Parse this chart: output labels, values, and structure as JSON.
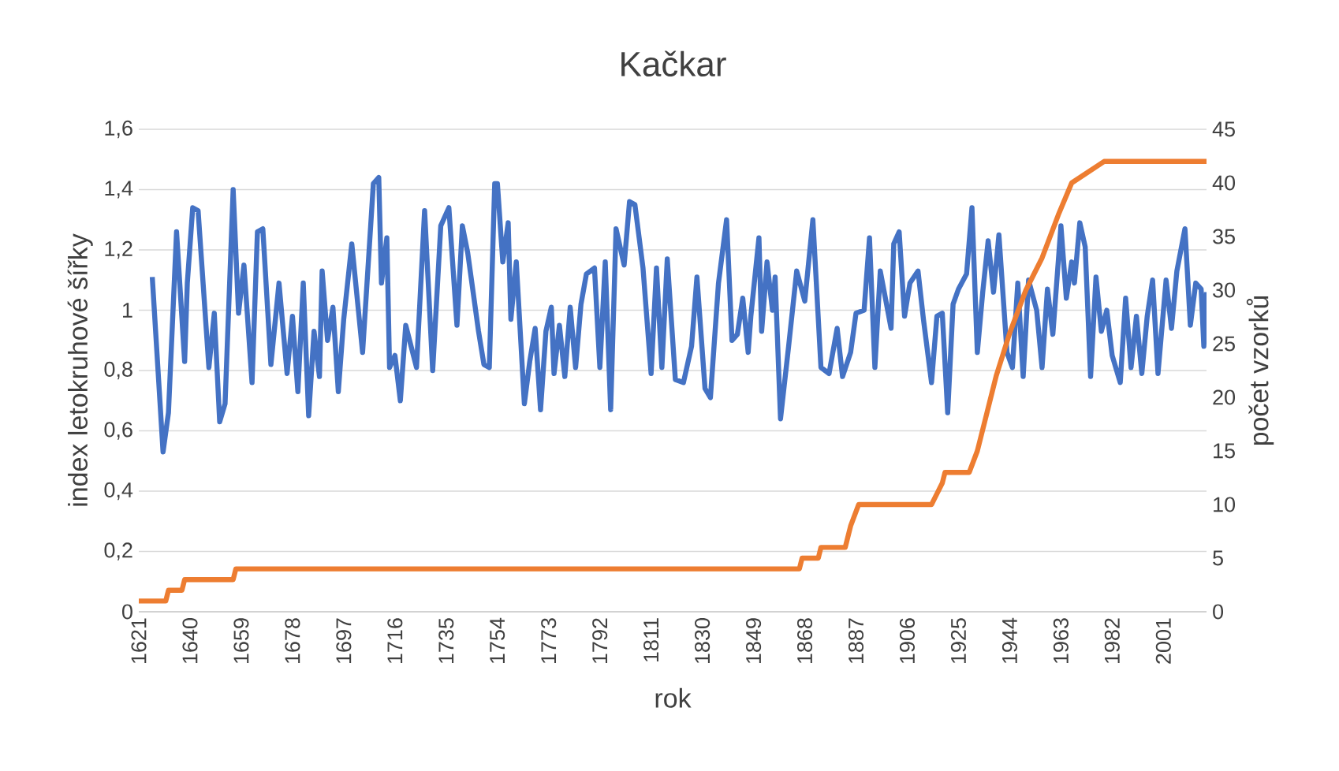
{
  "chart_data": {
    "type": "line",
    "title": "Kačkar",
    "xlabel": "rok",
    "ylabel": "index letokruhové šířky",
    "y2label": "počet vzorků",
    "xlim": [
      1621,
      2017
    ],
    "xticks": [
      1621,
      1640,
      1659,
      1678,
      1697,
      1716,
      1735,
      1754,
      1773,
      1792,
      1811,
      1830,
      1849,
      1868,
      1887,
      1906,
      1925,
      1944,
      1963,
      1982,
      2001
    ],
    "ylim": [
      0,
      1.6
    ],
    "yticks": [
      0,
      {
        "value": 0.2,
        "label": "0,2"
      },
      {
        "value": 0.4,
        "label": "0,4"
      },
      {
        "value": 0.6,
        "label": "0,6"
      },
      {
        "value": 0.8,
        "label": "0,8"
      },
      1,
      {
        "value": 1.2,
        "label": "1,2"
      },
      {
        "value": 1.4,
        "label": "1,4"
      },
      {
        "value": 1.6,
        "label": "1,6"
      }
    ],
    "y2lim": [
      0,
      45
    ],
    "y2ticks": [
      0,
      5,
      10,
      15,
      20,
      25,
      30,
      35,
      40,
      45
    ],
    "grid": "y",
    "series": [
      {
        "color": "#4472c4",
        "x": [
          1626,
          1630,
          1632,
          1635,
          1638,
          1639,
          1641,
          1643,
          1647,
          1649,
          1651,
          1653,
          1656,
          1658,
          1660,
          1663,
          1665,
          1667,
          1670,
          1673,
          1676,
          1678,
          1680,
          1682,
          1684,
          1686,
          1688,
          1689,
          1691,
          1693,
          1695,
          1697,
          1700,
          1704,
          1708,
          1710,
          1711,
          1713,
          1714,
          1716,
          1718,
          1720,
          1724,
          1727,
          1730,
          1733,
          1736,
          1739,
          1741,
          1743,
          1747,
          1749,
          1751,
          1753,
          1754,
          1756,
          1758,
          1759,
          1761,
          1764,
          1766,
          1768,
          1770,
          1772,
          1774,
          1775,
          1777,
          1779,
          1781,
          1783,
          1785,
          1787,
          1790,
          1792,
          1794,
          1796,
          1798,
          1801,
          1803,
          1805,
          1808,
          1811,
          1813,
          1815,
          1817,
          1820,
          1823,
          1826,
          1828,
          1831,
          1833,
          1836,
          1839,
          1841,
          1843,
          1845,
          1847,
          1848,
          1851,
          1852,
          1854,
          1856,
          1857,
          1859,
          1862,
          1865,
          1868,
          1871,
          1874,
          1877,
          1880,
          1882,
          1885,
          1887,
          1890,
          1892,
          1894,
          1896,
          1900,
          1901,
          1903,
          1905,
          1907,
          1910,
          1912,
          1915,
          1917,
          1919,
          1921,
          1923,
          1925,
          1928,
          1930,
          1932,
          1934,
          1936,
          1938,
          1940,
          1943,
          1945,
          1947,
          1949,
          1951,
          1954,
          1956,
          1958,
          1960,
          1963,
          1965,
          1967,
          1968,
          1970,
          1972,
          1974,
          1976,
          1978,
          1980,
          1982,
          1985,
          1987,
          1989,
          1991,
          1993,
          1995,
          1997,
          1999,
          2002,
          2004,
          2006,
          2009,
          2011,
          2013,
          2015,
          2016,
          2017
        ],
        "values": [
          1.11,
          0.53,
          0.66,
          1.26,
          0.83,
          1.09,
          1.34,
          1.33,
          0.81,
          0.99,
          0.63,
          0.69,
          1.4,
          0.99,
          1.15,
          0.76,
          1.26,
          1.27,
          0.82,
          1.09,
          0.79,
          0.98,
          0.73,
          1.09,
          0.65,
          0.93,
          0.78,
          1.13,
          0.9,
          1.01,
          0.73,
          0.97,
          1.22,
          0.86,
          1.42,
          1.44,
          1.09,
          1.24,
          0.81,
          0.85,
          0.7,
          0.95,
          0.81,
          1.33,
          0.8,
          1.28,
          1.34,
          0.95,
          1.28,
          1.19,
          0.93,
          0.82,
          0.81,
          1.42,
          1.42,
          1.16,
          1.29,
          0.97,
          1.16,
          0.69,
          0.83,
          0.94,
          0.67,
          0.93,
          1.01,
          0.79,
          0.95,
          0.78,
          1.01,
          0.81,
          1.02,
          1.12,
          1.14,
          0.81,
          1.16,
          0.67,
          1.27,
          1.15,
          1.36,
          1.35,
          1.14,
          0.79,
          1.14,
          0.81,
          1.17,
          0.77,
          0.76,
          0.88,
          1.11,
          0.74,
          0.71,
          1.09,
          1.3,
          0.9,
          0.92,
          1.04,
          0.86,
          0.98,
          1.24,
          0.93,
          1.16,
          1.0,
          1.11,
          0.64,
          0.88,
          1.13,
          1.03,
          1.3,
          0.81,
          0.79,
          0.94,
          0.78,
          0.86,
          0.99,
          1.0,
          1.24,
          0.81,
          1.13,
          0.94,
          1.22,
          1.26,
          0.98,
          1.09,
          1.13,
          0.97,
          0.76,
          0.98,
          0.99,
          0.66,
          1.02,
          1.07,
          1.12,
          1.34,
          0.86,
          1.06,
          1.23,
          1.06,
          1.25,
          0.86,
          0.81,
          1.09,
          0.78,
          1.1,
          1.0,
          0.81,
          1.07,
          0.92,
          1.28,
          1.04,
          1.16,
          1.09,
          1.29,
          1.21,
          0.78,
          1.11,
          0.93,
          1.0,
          0.85,
          0.76,
          1.04,
          0.81,
          0.98,
          0.79,
          0.98,
          1.1,
          0.79,
          1.1,
          0.94,
          1.13,
          1.27,
          0.95,
          1.09,
          1.07,
          0.88,
          1.06
        ]
      },
      {
        "axis": "y2",
        "color": "#ed7d31",
        "x": [
          1621,
          1631,
          1632,
          1637,
          1638,
          1656,
          1657,
          1866,
          1867,
          1873,
          1874,
          1883,
          1885,
          1888,
          1915,
          1917,
          1919,
          1920,
          1929,
          1932,
          1935,
          1939,
          1944,
          1950,
          1956,
          1962,
          1967,
          1973,
          1979,
          2017
        ],
        "values": [
          1,
          1,
          2,
          2,
          3,
          3,
          4,
          4,
          5,
          5,
          6,
          6,
          8,
          10,
          10,
          11,
          12,
          13,
          13,
          15,
          18,
          22,
          26,
          30,
          33,
          37,
          40,
          41,
          42,
          42
        ]
      }
    ]
  }
}
